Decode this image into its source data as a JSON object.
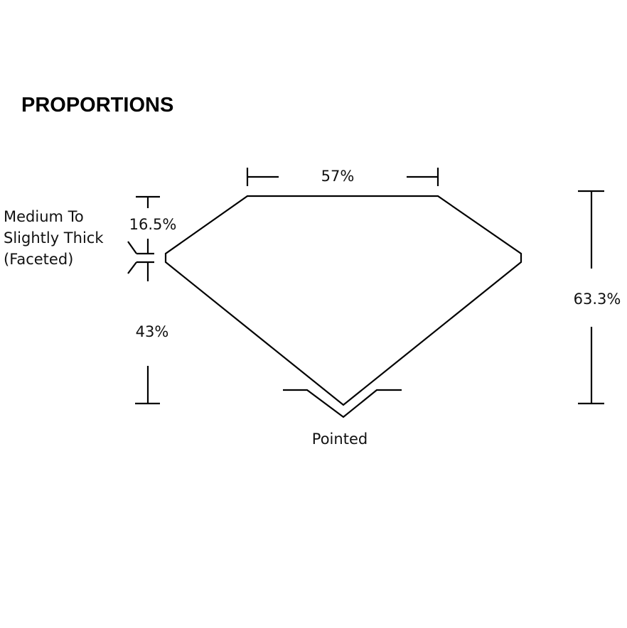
{
  "title": "PROPORTIONS",
  "labels": {
    "table": "57%",
    "crown": "16.5%",
    "girdle_line1": "Medium To",
    "girdle_line2": "Slightly Thick",
    "girdle_line3": "(Faceted)",
    "pavilion": "43%",
    "total_depth": "63.3%",
    "culet": "Pointed"
  }
}
